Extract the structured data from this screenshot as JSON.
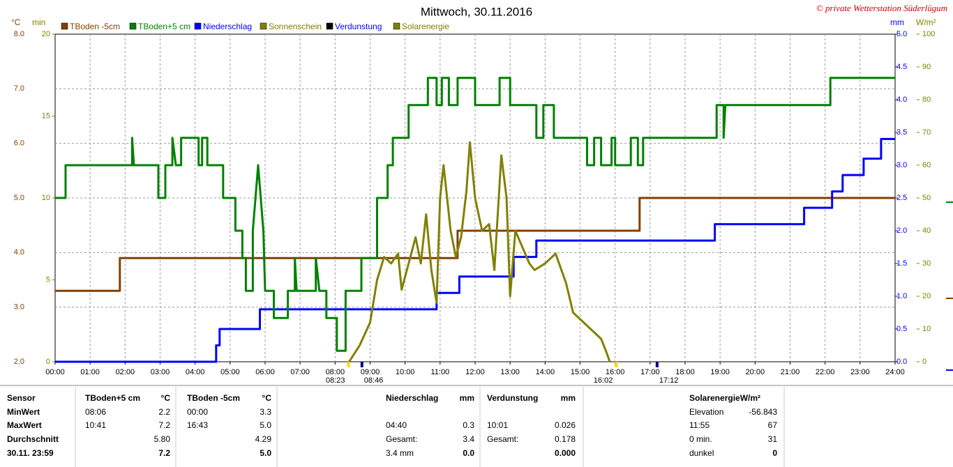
{
  "chart_data": {
    "type": "line",
    "title": "Mittwoch, 30.11.2016",
    "copyright": "© private Wetterstation Süderlügum",
    "axis_units": {
      "y": "°C",
      "y2": "min",
      "y3": "mm",
      "y4": "W/m²"
    },
    "xlim": [
      0,
      24
    ],
    "xticks": [
      {
        "value": 0,
        "label": "00:00"
      },
      {
        "value": 1,
        "label": "01:00"
      },
      {
        "value": 2,
        "label": "02:00"
      },
      {
        "value": 3,
        "label": "03:00"
      },
      {
        "value": 4,
        "label": "04:00"
      },
      {
        "value": 5,
        "label": "05:00"
      },
      {
        "value": 6,
        "label": "06:00"
      },
      {
        "value": 7,
        "label": "07:00"
      },
      {
        "value": 8,
        "label": "08:00"
      },
      {
        "value": 9,
        "label": "09:00"
      },
      {
        "value": 10,
        "label": "10:00"
      },
      {
        "value": 11,
        "label": "11:00"
      },
      {
        "value": 12,
        "label": "12:00"
      },
      {
        "value": 13,
        "label": "13:00"
      },
      {
        "value": 14,
        "label": "14:00"
      },
      {
        "value": 15,
        "label": "15:00"
      },
      {
        "value": 16,
        "label": "16:00"
      },
      {
        "value": 17,
        "label": "17:00"
      },
      {
        "value": 18,
        "label": "18:00"
      },
      {
        "value": 19,
        "label": "19:00"
      },
      {
        "value": 20,
        "label": "20:00"
      },
      {
        "value": 21,
        "label": "21:00"
      },
      {
        "value": 22,
        "label": "22:00"
      },
      {
        "value": 23,
        "label": "23:00"
      },
      {
        "value": 24,
        "label": "24:00"
      }
    ],
    "ylim": [
      2,
      8
    ],
    "yticks": [
      {
        "value": 2,
        "label": "2.0"
      },
      {
        "value": 3,
        "label": "3.0"
      },
      {
        "value": 4,
        "label": "4.0"
      },
      {
        "value": 5,
        "label": "5.0"
      },
      {
        "value": 6,
        "label": "6.0"
      },
      {
        "value": 7,
        "label": "7.0"
      },
      {
        "value": 8,
        "label": "8.0"
      }
    ],
    "y2lim": [
      0,
      20
    ],
    "y2ticks": [
      0,
      5,
      10,
      15,
      20
    ],
    "y3lim": [
      0,
      5
    ],
    "y3ticks": [
      {
        "value": 0,
        "label": "0.0"
      },
      {
        "value": 0.5,
        "label": "0.5"
      },
      {
        "value": 1,
        "label": "1.0"
      },
      {
        "value": 1.5,
        "label": "1.5"
      },
      {
        "value": 2,
        "label": "2.0"
      },
      {
        "value": 2.5,
        "label": "2.5"
      },
      {
        "value": 3,
        "label": "3.0"
      },
      {
        "value": 3.5,
        "label": "3.5"
      },
      {
        "value": 4,
        "label": "4.0"
      },
      {
        "value": 4.5,
        "label": "4.5"
      },
      {
        "value": 5,
        "label": "5.0"
      }
    ],
    "y4lim": [
      0,
      100
    ],
    "y4ticks": [
      0,
      10,
      20,
      30,
      40,
      50,
      60,
      70,
      80,
      90,
      100
    ],
    "grid": true,
    "series": [
      {
        "name": "TBoden -5cm",
        "color": "#804000",
        "axis": "y",
        "x": [
          0,
          1.85,
          1.85,
          11.5,
          11.5,
          16.7,
          16.7,
          24
        ],
        "values": [
          3.3,
          3.3,
          3.9,
          3.9,
          4.4,
          4.4,
          5.0,
          5.0
        ]
      },
      {
        "name": "TBoden+5 cm",
        "color": "#008000",
        "axis": "y",
        "x": [
          0,
          0.3,
          0.3,
          2.2,
          2.2,
          2.25,
          2.95,
          2.95,
          3.15,
          3.15,
          3.35,
          3.35,
          3.45,
          3.6,
          3.6,
          4.1,
          4.1,
          4.2,
          4.2,
          4.35,
          4.35,
          4.8,
          4.8,
          5.15,
          5.15,
          5.35,
          5.35,
          5.45,
          5.45,
          5.65,
          5.65,
          5.8,
          5.95,
          6.0,
          6.25,
          6.25,
          6.65,
          6.65,
          6.85,
          6.85,
          6.9,
          7.45,
          7.45,
          7.55,
          7.75,
          7.75,
          8.05,
          8.05,
          8.3,
          8.3,
          8.75,
          8.75,
          9.2,
          9.2,
          9.5,
          9.5,
          9.65,
          9.65,
          10.1,
          10.1,
          10.65,
          10.65,
          10.9,
          10.9,
          11.05,
          11.05,
          11.25,
          11.25,
          11.5,
          11.5,
          12.0,
          12.0,
          12.7,
          12.7,
          13.0,
          13.0,
          13.75,
          13.75,
          13.95,
          13.95,
          14.25,
          14.25,
          15.2,
          15.2,
          15.4,
          15.4,
          15.6,
          15.6,
          15.9,
          15.9,
          16.0,
          16.0,
          16.45,
          16.45,
          16.65,
          16.65,
          16.8,
          16.8,
          18.9,
          18.9,
          19.1,
          19.1,
          19.15,
          22.15,
          22.15,
          24
        ],
        "values": [
          5.0,
          5.0,
          5.6,
          5.6,
          6.1,
          5.6,
          5.6,
          5.0,
          5.0,
          5.6,
          5.6,
          6.1,
          5.6,
          5.6,
          6.1,
          6.1,
          5.6,
          5.6,
          6.1,
          6.1,
          5.6,
          5.6,
          5.0,
          5.0,
          4.4,
          4.4,
          3.9,
          3.9,
          3.3,
          3.3,
          4.4,
          5.6,
          4.4,
          3.3,
          3.3,
          2.8,
          2.8,
          3.3,
          3.3,
          3.9,
          3.3,
          3.3,
          3.9,
          3.3,
          3.3,
          2.8,
          2.8,
          2.2,
          2.2,
          3.3,
          3.3,
          3.9,
          3.9,
          5.0,
          5.0,
          5.6,
          5.6,
          6.1,
          6.1,
          6.7,
          6.7,
          7.2,
          7.2,
          6.7,
          6.7,
          7.2,
          7.2,
          6.7,
          6.7,
          7.2,
          7.2,
          6.7,
          6.7,
          7.2,
          7.2,
          6.7,
          6.7,
          6.1,
          6.1,
          6.7,
          6.7,
          6.1,
          6.1,
          5.6,
          5.6,
          6.1,
          6.1,
          5.6,
          5.6,
          6.1,
          6.1,
          5.6,
          5.6,
          6.1,
          6.1,
          5.6,
          5.6,
          6.1,
          6.1,
          6.7,
          6.7,
          6.1,
          6.7,
          6.7,
          7.2,
          7.2
        ]
      },
      {
        "name": "Niederschlag",
        "color": "#0000ff",
        "axis": "y3",
        "x": [
          0,
          4.6,
          4.6,
          4.7,
          4.7,
          5.85,
          5.85,
          10.9,
          10.9,
          11.55,
          11.55,
          13.1,
          13.1,
          13.75,
          13.75,
          18.85,
          18.85,
          21.4,
          21.4,
          22.2,
          22.2,
          22.5,
          22.5,
          23.1,
          23.1,
          23.6,
          23.6,
          24
        ],
        "values": [
          0,
          0,
          0.25,
          0.25,
          0.5,
          0.5,
          0.8,
          0.8,
          1.05,
          1.05,
          1.3,
          1.3,
          1.6,
          1.6,
          1.85,
          1.85,
          2.1,
          2.1,
          2.35,
          2.35,
          2.6,
          2.6,
          2.85,
          2.85,
          3.1,
          3.1,
          3.4,
          3.4
        ]
      },
      {
        "name": "Sonnenschein",
        "color": "#808000",
        "axis": "y2"
      },
      {
        "name": "Verdunstung",
        "color": "#000000",
        "axis": "y3"
      },
      {
        "name": "Solarenergie",
        "color": "#808000",
        "axis": "y4",
        "x": [
          8.4,
          8.7,
          9.0,
          9.2,
          9.4,
          9.6,
          9.8,
          9.9,
          10.1,
          10.3,
          10.45,
          10.6,
          10.75,
          10.9,
          11.0,
          11.1,
          11.3,
          11.45,
          11.6,
          11.75,
          11.85,
          12.0,
          12.2,
          12.4,
          12.55,
          12.75,
          12.9,
          13.0,
          13.15,
          13.35,
          13.55,
          13.7,
          14.0,
          14.3,
          14.6,
          14.8,
          15.0,
          15.3,
          15.6,
          15.75,
          15.85
        ],
        "values": [
          0,
          5,
          12,
          25,
          32,
          30,
          33,
          22,
          30,
          38,
          30,
          45,
          28,
          18,
          50,
          60,
          40,
          32,
          38,
          52,
          67,
          50,
          40,
          42,
          28,
          63,
          50,
          20,
          40,
          35,
          30,
          28,
          30,
          33,
          24,
          15,
          13,
          10,
          7,
          3,
          0
        ]
      }
    ],
    "annotations": [
      {
        "x": 8.3833,
        "label": "08:23",
        "color": "#ffd700"
      },
      {
        "x": 8.7667,
        "label": "08:46",
        "color": "#000080"
      },
      {
        "x": 16.0333,
        "label": "16:02",
        "color": "#ffd700"
      },
      {
        "x": 17.2,
        "label": "17:12",
        "color": "#000080"
      }
    ]
  },
  "table": {
    "rows": [
      [
        "Sensor",
        "TBoden+5 cm",
        "°C",
        "TBoden -5cm",
        "°C",
        "Niederschlag",
        "mm",
        "Verdunstung",
        "mm",
        "SolarenergieW/m²",
        null
      ],
      [
        "MinWert",
        "08:06",
        "2.2",
        "00:00",
        "3.3",
        null,
        null,
        null,
        null,
        "Elevation",
        "-56.843"
      ],
      [
        "MaxWert",
        "10:41",
        "7.2",
        "16:43",
        "5.0",
        "04:40",
        "0.3",
        "10:01",
        "0.026",
        "11:55",
        "67"
      ],
      [
        "Durchschnitt",
        null,
        "5.80",
        null,
        "4.29",
        "Gesamt:",
        "3.4",
        "Gesamt:",
        "0.178",
        "0 min.",
        "31"
      ],
      [
        "30.11. 23:59",
        null,
        "7.2",
        null,
        "5.0",
        "3.4 mm",
        "0.0",
        null,
        "0.000",
        "dunkel",
        "0"
      ]
    ]
  }
}
